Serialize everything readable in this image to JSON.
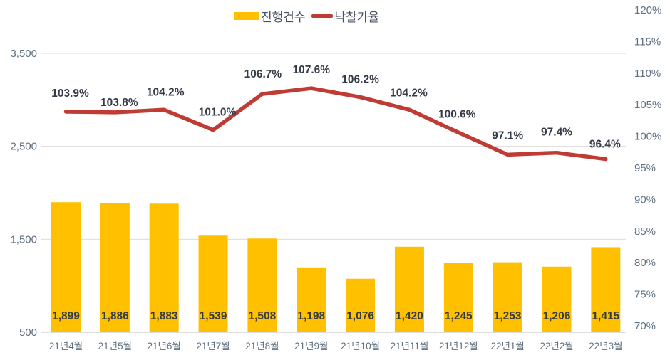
{
  "legend": {
    "bar_label": "진행건수",
    "line_label": "낙찰가율"
  },
  "chart_data": {
    "type": "combo",
    "title": "",
    "categories": [
      "21년4월",
      "21년5월",
      "21년6월",
      "21년7월",
      "21년8월",
      "21년9월",
      "21년10월",
      "21년11월",
      "21년12월",
      "22년1월",
      "22년2월",
      "22년3월"
    ],
    "series": [
      {
        "name": "진행건수",
        "type": "bar",
        "axis": "left",
        "color": "#FFC000",
        "values": [
          1899,
          1886,
          1883,
          1539,
          1508,
          1198,
          1076,
          1420,
          1245,
          1253,
          1206,
          1415
        ],
        "labels": [
          "1,899",
          "1,886",
          "1,883",
          "1,539",
          "1,508",
          "1,198",
          "1,076",
          "1,420",
          "1,245",
          "1,253",
          "1,206",
          "1,415"
        ]
      },
      {
        "name": "낙찰가율",
        "type": "line",
        "axis": "right",
        "color": "#C13B35",
        "values": [
          103.9,
          103.8,
          104.2,
          101.0,
          106.7,
          107.6,
          106.2,
          104.2,
          100.6,
          97.1,
          97.4,
          96.4
        ],
        "labels": [
          "103.9%",
          "103.8%",
          "104.2%",
          "101.0%",
          "106.7%",
          "107.6%",
          "106.2%",
          "104.2%",
          "100.6%",
          "97.1%",
          "97.4%",
          "96.4%"
        ]
      }
    ],
    "left_axis": {
      "min": 500,
      "max": 3500,
      "step": 1000,
      "ticks": [
        {
          "v": 500,
          "label": "500"
        },
        {
          "v": 1500,
          "label": "1,500"
        },
        {
          "v": 2500,
          "label": "2,500"
        },
        {
          "v": 3500,
          "label": "3,500"
        }
      ]
    },
    "right_axis": {
      "min": 70,
      "max": 120,
      "step": 5,
      "ticks": [
        {
          "v": 70,
          "label": "70%"
        },
        {
          "v": 75,
          "label": "75%"
        },
        {
          "v": 80,
          "label": "80%"
        },
        {
          "v": 85,
          "label": "85%"
        },
        {
          "v": 90,
          "label": "90%"
        },
        {
          "v": 95,
          "label": "95%"
        },
        {
          "v": 100,
          "label": "100%"
        },
        {
          "v": 105,
          "label": "105%"
        },
        {
          "v": 110,
          "label": "110%"
        },
        {
          "v": 115,
          "label": "115%"
        },
        {
          "v": 120,
          "label": "120%"
        }
      ]
    },
    "grid": "horizontal",
    "legend_position": "top",
    "colors": {
      "bar": "#FFC000",
      "line": "#C13B35",
      "grid": "#DCDCDC",
      "baseline": "#C9C9C9",
      "axis_text": "#5E7081",
      "data_label": "#363C47",
      "legend_text": "#475063",
      "background": "#FFFFFF"
    }
  }
}
